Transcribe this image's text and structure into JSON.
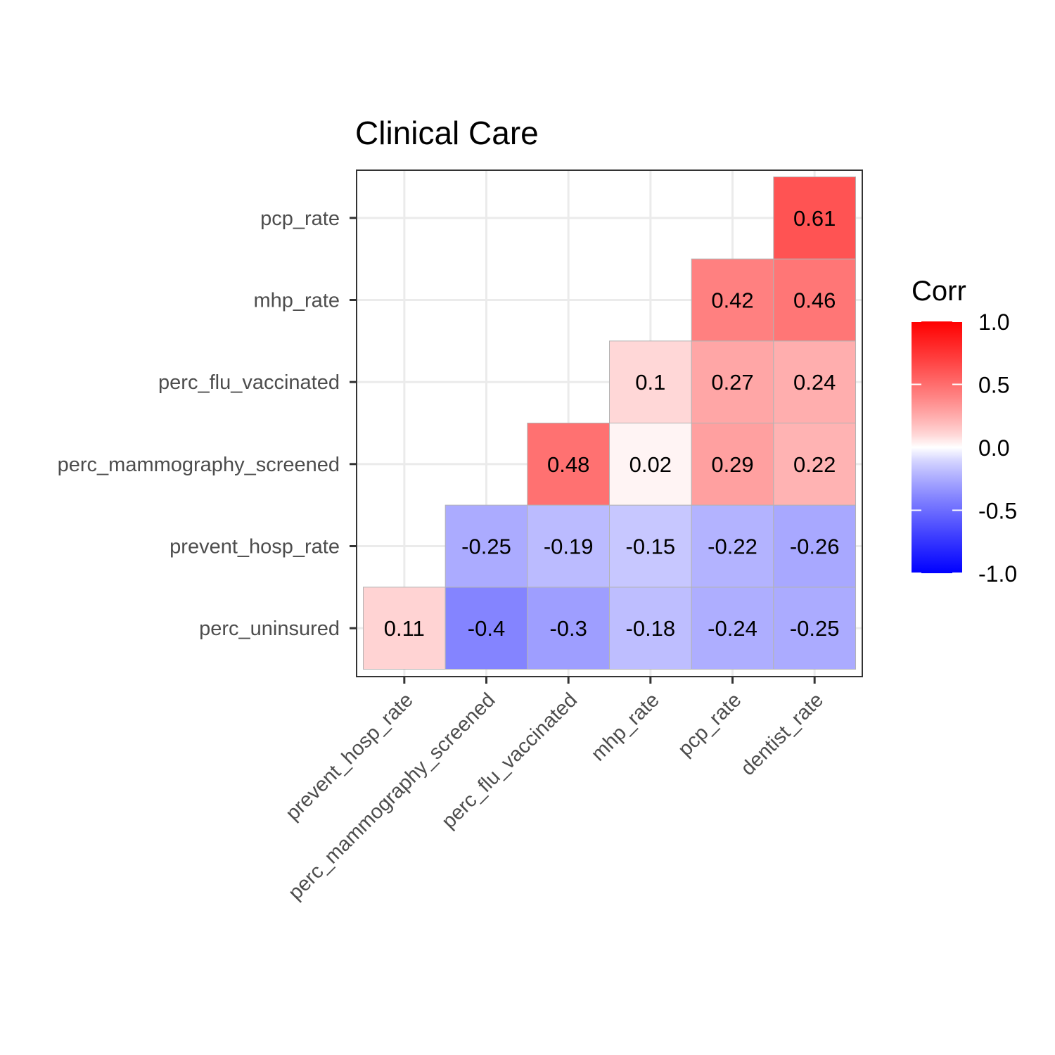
{
  "chart_data": {
    "type": "heatmap",
    "title": "Clinical Care",
    "x_categories": [
      "prevent_hosp_rate",
      "perc_mammography_screened",
      "perc_flu_vaccinated",
      "mhp_rate",
      "pcp_rate",
      "dentist_rate"
    ],
    "y_categories": [
      "perc_uninsured",
      "prevent_hosp_rate",
      "perc_mammography_screened",
      "perc_flu_vaccinated",
      "mhp_rate",
      "pcp_rate"
    ],
    "cells": [
      {
        "x": "prevent_hosp_rate",
        "y": "perc_uninsured",
        "value": 0.11,
        "label": "0.11"
      },
      {
        "x": "perc_mammography_screened",
        "y": "perc_uninsured",
        "value": -0.4,
        "label": "-0.4"
      },
      {
        "x": "perc_flu_vaccinated",
        "y": "perc_uninsured",
        "value": -0.3,
        "label": "-0.3"
      },
      {
        "x": "mhp_rate",
        "y": "perc_uninsured",
        "value": -0.18,
        "label": "-0.18"
      },
      {
        "x": "pcp_rate",
        "y": "perc_uninsured",
        "value": -0.24,
        "label": "-0.24"
      },
      {
        "x": "dentist_rate",
        "y": "perc_uninsured",
        "value": -0.25,
        "label": "-0.25"
      },
      {
        "x": "perc_mammography_screened",
        "y": "prevent_hosp_rate",
        "value": -0.25,
        "label": "-0.25"
      },
      {
        "x": "perc_flu_vaccinated",
        "y": "prevent_hosp_rate",
        "value": -0.19,
        "label": "-0.19"
      },
      {
        "x": "mhp_rate",
        "y": "prevent_hosp_rate",
        "value": -0.15,
        "label": "-0.15"
      },
      {
        "x": "pcp_rate",
        "y": "prevent_hosp_rate",
        "value": -0.22,
        "label": "-0.22"
      },
      {
        "x": "dentist_rate",
        "y": "prevent_hosp_rate",
        "value": -0.26,
        "label": "-0.26"
      },
      {
        "x": "perc_flu_vaccinated",
        "y": "perc_mammography_screened",
        "value": 0.48,
        "label": "0.48"
      },
      {
        "x": "mhp_rate",
        "y": "perc_mammography_screened",
        "value": 0.02,
        "label": "0.02"
      },
      {
        "x": "pcp_rate",
        "y": "perc_mammography_screened",
        "value": 0.29,
        "label": "0.29"
      },
      {
        "x": "dentist_rate",
        "y": "perc_mammography_screened",
        "value": 0.22,
        "label": "0.22"
      },
      {
        "x": "mhp_rate",
        "y": "perc_flu_vaccinated",
        "value": 0.1,
        "label": "0.1"
      },
      {
        "x": "pcp_rate",
        "y": "perc_flu_vaccinated",
        "value": 0.27,
        "label": "0.27"
      },
      {
        "x": "dentist_rate",
        "y": "perc_flu_vaccinated",
        "value": 0.24,
        "label": "0.24"
      },
      {
        "x": "pcp_rate",
        "y": "mhp_rate",
        "value": 0.42,
        "label": "0.42"
      },
      {
        "x": "dentist_rate",
        "y": "mhp_rate",
        "value": 0.46,
        "label": "0.46"
      },
      {
        "x": "dentist_rate",
        "y": "pcp_rate",
        "value": 0.61,
        "label": "0.61"
      }
    ],
    "legend": {
      "title": "Corr",
      "ticks": [
        "1.0",
        "0.5",
        "0.0",
        "-0.5",
        "-1.0"
      ],
      "range": [
        -1,
        1
      ],
      "placement": "right"
    },
    "colors": {
      "low": "#0000ff",
      "mid": "#ffffff",
      "high": "#ff0000",
      "panel_border": "#333333",
      "grid": "#ebebeb",
      "cell_border": "#b3b3b3"
    },
    "grid": true
  }
}
